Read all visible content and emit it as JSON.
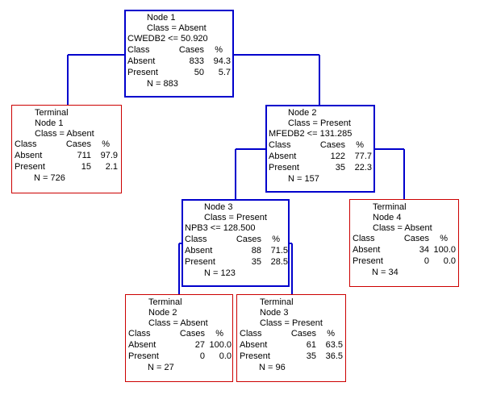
{
  "colors": {
    "split": "#0000cc",
    "terminal": "#cc0000"
  },
  "nodes": [
    {
      "id": "node-1",
      "kind": "split",
      "header": [
        "Node 1",
        "Class = Absent"
      ],
      "rule": "CWEDB2 <= 50.920",
      "table_header": {
        "class": "Class",
        "cases": "Cases",
        "pct": "%"
      },
      "rows": [
        {
          "label": "Absent",
          "cases": "833",
          "pct": "94.3"
        },
        {
          "label": "Present",
          "cases": "50",
          "pct": "5.7"
        }
      ],
      "total": "N = 883"
    },
    {
      "id": "terminal-1",
      "kind": "terminal",
      "header": [
        "Terminal",
        "Node 1",
        "Class = Absent"
      ],
      "rule": "",
      "table_header": {
        "class": "Class",
        "cases": "Cases",
        "pct": "%"
      },
      "rows": [
        {
          "label": "Absent",
          "cases": "711",
          "pct": "97.9"
        },
        {
          "label": "Present",
          "cases": "15",
          "pct": "2.1"
        }
      ],
      "total": "N = 726"
    },
    {
      "id": "node-2",
      "kind": "split",
      "header": [
        "Node 2",
        "Class = Present"
      ],
      "rule": "MFEDB2 <= 131.285",
      "table_header": {
        "class": "Class",
        "cases": "Cases",
        "pct": "%"
      },
      "rows": [
        {
          "label": "Absent",
          "cases": "122",
          "pct": "77.7"
        },
        {
          "label": "Present",
          "cases": "35",
          "pct": "22.3"
        }
      ],
      "total": "N = 157"
    },
    {
      "id": "node-3",
      "kind": "split",
      "header": [
        "Node 3",
        "Class = Present"
      ],
      "rule": "NPB3 <= 128.500",
      "table_header": {
        "class": "Class",
        "cases": "Cases",
        "pct": "%"
      },
      "rows": [
        {
          "label": "Absent",
          "cases": "88",
          "pct": "71.5"
        },
        {
          "label": "Present",
          "cases": "35",
          "pct": "28.5"
        }
      ],
      "total": "N = 123"
    },
    {
      "id": "terminal-4",
      "kind": "terminal",
      "header": [
        "Terminal",
        "Node 4",
        "Class = Absent"
      ],
      "rule": "",
      "table_header": {
        "class": "Class",
        "cases": "Cases",
        "pct": "%"
      },
      "rows": [
        {
          "label": "Absent",
          "cases": "34",
          "pct": "100.0"
        },
        {
          "label": "Present",
          "cases": "0",
          "pct": "0.0"
        }
      ],
      "total": "N = 34"
    },
    {
      "id": "terminal-2",
      "kind": "terminal",
      "header": [
        "Terminal",
        "Node 2",
        "Class = Absent"
      ],
      "rule": "",
      "table_header": {
        "class": "Class",
        "cases": "Cases",
        "pct": "%"
      },
      "rows": [
        {
          "label": "Absent",
          "cases": "27",
          "pct": "100.0"
        },
        {
          "label": "Present",
          "cases": "0",
          "pct": "0.0"
        }
      ],
      "total": "N = 27"
    },
    {
      "id": "terminal-3",
      "kind": "terminal",
      "header": [
        "Terminal",
        "Node 3",
        "Class = Present"
      ],
      "rule": "",
      "table_header": {
        "class": "Class",
        "cases": "Cases",
        "pct": "%"
      },
      "rows": [
        {
          "label": "Absent",
          "cases": "61",
          "pct": "63.5"
        },
        {
          "label": "Present",
          "cases": "35",
          "pct": "36.5"
        }
      ],
      "total": "N = 96"
    }
  ],
  "edges": [
    {
      "from": "node-1",
      "to": "terminal-1"
    },
    {
      "from": "node-1",
      "to": "node-2"
    },
    {
      "from": "node-2",
      "to": "node-3"
    },
    {
      "from": "node-2",
      "to": "terminal-4"
    },
    {
      "from": "node-3",
      "to": "terminal-2"
    },
    {
      "from": "node-3",
      "to": "terminal-3"
    }
  ]
}
